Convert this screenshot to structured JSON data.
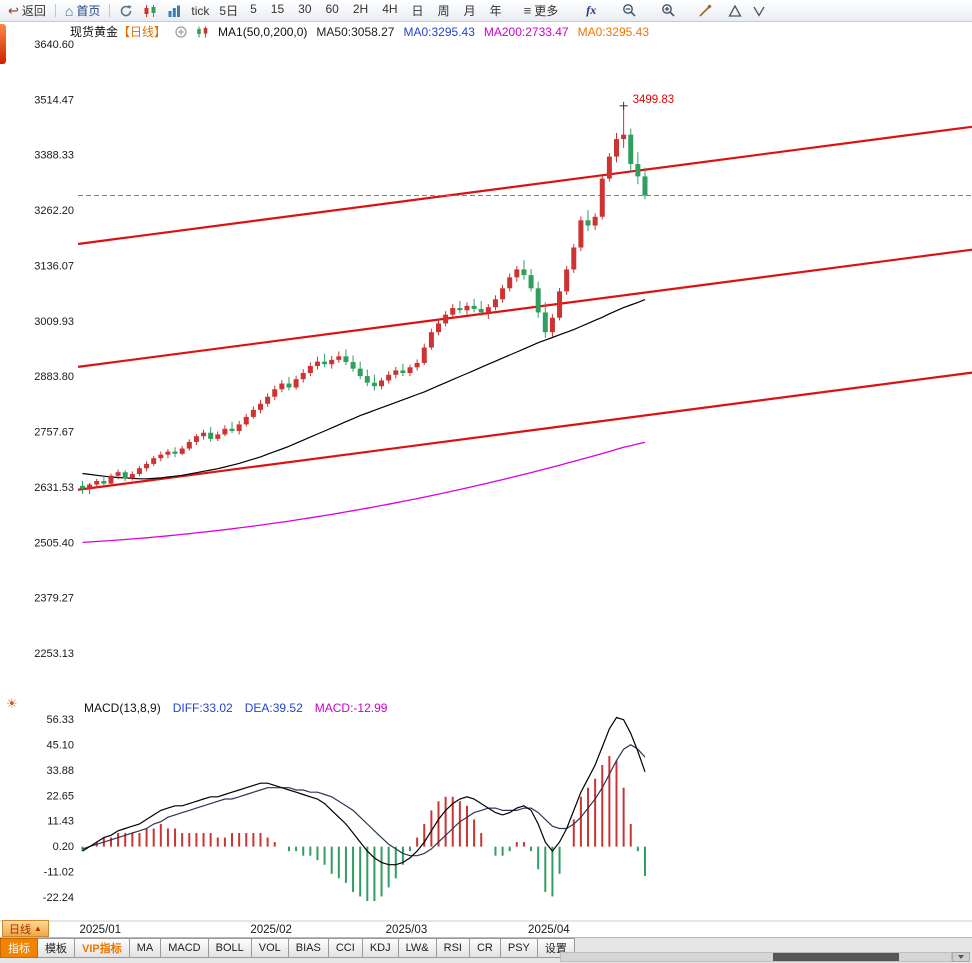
{
  "toolbar": {
    "back_label": "返回",
    "home_label": "首页",
    "tick_label": "tick",
    "five_day_label": "5日",
    "timeframes": [
      "5",
      "15",
      "30",
      "60",
      "2H",
      "4H",
      "日",
      "周",
      "月",
      "年"
    ],
    "more_label": "更多",
    "fx_label": "fx"
  },
  "chart_header": {
    "title_name": "现货黄金",
    "title_period": "【日线】",
    "ma_settings": "MA1(50,0,200,0)",
    "ma50": "MA50:3058.27",
    "ma0_blue": "MA0:3295.43",
    "ma200": "MA200:2733.47",
    "ma0_orange": "MA0:3295.43"
  },
  "macd_header": {
    "label": "MACD(13,8,9)",
    "diff": "DIFF:33.02",
    "dea": "DEA:39.52",
    "macd": "MACD:-12.99"
  },
  "bottom": {
    "period_chip": {
      "label": "日线",
      "arrow": "▲"
    },
    "tabs": [
      {
        "label": "指标",
        "style": "active"
      },
      {
        "label": "模板"
      },
      {
        "label": "VIP指标",
        "style": "vip"
      },
      {
        "label": "MA"
      },
      {
        "label": "MACD"
      },
      {
        "label": "BOLL"
      },
      {
        "label": "VOL"
      },
      {
        "label": "BIAS"
      },
      {
        "label": "CCI"
      },
      {
        "label": "KDJ"
      },
      {
        "label": "LW&"
      },
      {
        "label": "RSI"
      },
      {
        "label": "CR"
      },
      {
        "label": "PSY"
      },
      {
        "label": "设置"
      }
    ]
  },
  "chart_data": {
    "type": "candlestick-with-macd",
    "instrument": "现货黄金",
    "period": "日线",
    "price_axis_ticks": [
      "3640.60",
      "3514.47",
      "3388.33",
      "3262.20",
      "3136.07",
      "3009.93",
      "2883.80",
      "2757.67",
      "2631.53",
      "2505.40",
      "2379.27",
      "2253.13"
    ],
    "macd_axis_ticks": [
      "56.33",
      "45.10",
      "33.88",
      "22.65",
      "11.43",
      "0.20",
      "-11.02",
      "-22.24"
    ],
    "x_labels": [
      {
        "label": "2025/01",
        "candle_index": 0
      },
      {
        "label": "2025/02",
        "candle_index": 24
      },
      {
        "label": "2025/03",
        "candle_index": 43
      },
      {
        "label": "2025/04",
        "candle_index": 63
      }
    ],
    "annotation": {
      "text": "3499.83",
      "price": 3499.83,
      "candle_index": 76
    },
    "current_price_line": {
      "value": 3295.43
    },
    "trend_channel": {
      "lines": [
        {
          "price_start": 3185,
          "price_end": 3452
        },
        {
          "price_start": 2905,
          "price_end": 3172
        },
        {
          "price_start": 2625,
          "price_end": 2892
        }
      ]
    },
    "candles": [
      [
        2634,
        2645,
        2616,
        2628
      ],
      [
        2628,
        2641,
        2615,
        2637
      ],
      [
        2637,
        2650,
        2629,
        2645
      ],
      [
        2645,
        2656,
        2634,
        2639
      ],
      [
        2639,
        2662,
        2636,
        2657
      ],
      [
        2657,
        2671,
        2649,
        2665
      ],
      [
        2665,
        2670,
        2645,
        2651
      ],
      [
        2651,
        2667,
        2646,
        2661
      ],
      [
        2661,
        2679,
        2656,
        2674
      ],
      [
        2674,
        2690,
        2667,
        2684
      ],
      [
        2684,
        2702,
        2679,
        2697
      ],
      [
        2697,
        2712,
        2690,
        2705
      ],
      [
        2705,
        2718,
        2697,
        2712
      ],
      [
        2712,
        2722,
        2699,
        2707
      ],
      [
        2707,
        2725,
        2704,
        2719
      ],
      [
        2719,
        2740,
        2714,
        2734
      ],
      [
        2734,
        2752,
        2727,
        2747
      ],
      [
        2747,
        2762,
        2739,
        2755
      ],
      [
        2755,
        2768,
        2734,
        2741
      ],
      [
        2741,
        2758,
        2736,
        2751
      ],
      [
        2751,
        2772,
        2747,
        2764
      ],
      [
        2764,
        2780,
        2754,
        2759
      ],
      [
        2759,
        2782,
        2751,
        2774
      ],
      [
        2774,
        2798,
        2769,
        2791
      ],
      [
        2791,
        2815,
        2787,
        2807
      ],
      [
        2807,
        2830,
        2799,
        2821
      ],
      [
        2821,
        2845,
        2814,
        2837
      ],
      [
        2837,
        2862,
        2829,
        2854
      ],
      [
        2854,
        2875,
        2847,
        2867
      ],
      [
        2867,
        2882,
        2851,
        2858
      ],
      [
        2858,
        2885,
        2853,
        2877
      ],
      [
        2877,
        2900,
        2869,
        2891
      ],
      [
        2891,
        2915,
        2884,
        2907
      ],
      [
        2907,
        2928,
        2899,
        2917
      ],
      [
        2917,
        2935,
        2904,
        2911
      ],
      [
        2911,
        2930,
        2901,
        2921
      ],
      [
        2921,
        2940,
        2914,
        2929
      ],
      [
        2929,
        2945,
        2909,
        2916
      ],
      [
        2916,
        2931,
        2894,
        2901
      ],
      [
        2901,
        2917,
        2877,
        2884
      ],
      [
        2884,
        2899,
        2861,
        2869
      ],
      [
        2869,
        2887,
        2851,
        2861
      ],
      [
        2861,
        2880,
        2854,
        2874
      ],
      [
        2874,
        2895,
        2867,
        2887
      ],
      [
        2887,
        2905,
        2879,
        2897
      ],
      [
        2897,
        2912,
        2884,
        2891
      ],
      [
        2891,
        2910,
        2884,
        2904
      ],
      [
        2904,
        2922,
        2897,
        2914
      ],
      [
        2914,
        2958,
        2909,
        2949
      ],
      [
        2949,
        2992,
        2944,
        2984
      ],
      [
        2984,
        3012,
        2977,
        3004
      ],
      [
        3004,
        3032,
        2997,
        3024
      ],
      [
        3024,
        3048,
        3017,
        3039
      ],
      [
        3039,
        3055,
        3027,
        3034
      ],
      [
        3034,
        3052,
        3024,
        3044
      ],
      [
        3044,
        3060,
        3029,
        3037
      ],
      [
        3037,
        3055,
        3021,
        3029
      ],
      [
        3029,
        3048,
        3014,
        3041
      ],
      [
        3041,
        3068,
        3034,
        3059
      ],
      [
        3059,
        3092,
        3051,
        3084
      ],
      [
        3084,
        3118,
        3077,
        3109
      ],
      [
        3109,
        3135,
        3099,
        3127
      ],
      [
        3127,
        3148,
        3104,
        3114
      ],
      [
        3114,
        3128,
        3077,
        3084
      ],
      [
        3084,
        3099,
        3017,
        3029
      ],
      [
        3029,
        3052,
        2971,
        2984
      ],
      [
        2984,
        3025,
        2974,
        3017
      ],
      [
        3017,
        3085,
        3011,
        3077
      ],
      [
        3077,
        3135,
        3069,
        3127
      ],
      [
        3127,
        3185,
        3119,
        3177
      ],
      [
        3177,
        3248,
        3169,
        3239
      ],
      [
        3239,
        3262,
        3214,
        3227
      ],
      [
        3227,
        3255,
        3217,
        3247
      ],
      [
        3247,
        3342,
        3241,
        3334
      ],
      [
        3334,
        3392,
        3327,
        3384
      ],
      [
        3384,
        3438,
        3371,
        3424
      ],
      [
        3424,
        3499.83,
        3404,
        3434
      ],
      [
        3434,
        3448,
        3351,
        3367
      ],
      [
        3367,
        3394,
        3321,
        3339
      ],
      [
        3339,
        3359,
        3287,
        3295.43
      ]
    ],
    "ma50": [
      2662,
      2660,
      2658,
      2656,
      2654,
      2653,
      2652,
      2651,
      2650,
      2650,
      2651,
      2652,
      2654,
      2656,
      2658,
      2661,
      2664,
      2667,
      2670,
      2673,
      2677,
      2681,
      2685,
      2690,
      2695,
      2700,
      2706,
      2712,
      2718,
      2724,
      2731,
      2738,
      2745,
      2752,
      2759,
      2766,
      2773,
      2780,
      2787,
      2794,
      2800,
      2806,
      2812,
      2818,
      2824,
      2830,
      2836,
      2842,
      2848,
      2855,
      2862,
      2869,
      2876,
      2883,
      2890,
      2897,
      2904,
      2911,
      2918,
      2925,
      2932,
      2939,
      2946,
      2953,
      2960,
      2966,
      2972,
      2978,
      2984,
      2990,
      2997,
      3004,
      3011,
      3018,
      3026,
      3033,
      3040,
      3046,
      3052,
      3058.27
    ],
    "ma200": [
      2505,
      2506,
      2507.1,
      2508.2,
      2509.3,
      2510.5,
      2511.7,
      2513,
      2514.3,
      2515.7,
      2517.1,
      2518.6,
      2520.1,
      2521.7,
      2523.3,
      2525,
      2526.7,
      2528.5,
      2530.3,
      2532.2,
      2534.1,
      2536.1,
      2538.1,
      2540.2,
      2542.3,
      2544.5,
      2546.7,
      2549,
      2551.3,
      2553.7,
      2556.1,
      2558.6,
      2561.1,
      2563.7,
      2566.3,
      2569,
      2571.7,
      2574.5,
      2577.3,
      2580.2,
      2583.1,
      2586.1,
      2589.1,
      2592.2,
      2595.3,
      2598.5,
      2601.7,
      2605,
      2608.3,
      2611.7,
      2615.1,
      2618.6,
      2622.1,
      2625.7,
      2629.3,
      2633,
      2636.7,
      2640.5,
      2644.3,
      2648.2,
      2652.1,
      2656.1,
      2660.1,
      2664.2,
      2668.3,
      2672.5,
      2676.7,
      2681,
      2685.3,
      2689.7,
      2694.1,
      2698.6,
      2703.1,
      2707.7,
      2712.3,
      2717,
      2721.7,
      2725.5,
      2729.5,
      2733.47
    ],
    "macd": {
      "diff": [
        -2,
        0,
        2,
        4,
        5,
        7,
        8,
        9,
        10,
        12,
        14,
        16,
        17,
        18,
        18,
        19,
        20,
        21,
        22,
        22,
        23,
        24,
        25,
        26,
        27,
        28,
        28,
        27,
        26,
        25,
        24,
        23,
        22,
        21,
        19,
        16,
        13,
        10,
        6,
        2,
        -2,
        -5,
        -7,
        -8,
        -8,
        -7,
        -5,
        -2,
        2,
        7,
        12,
        16,
        19,
        21,
        22,
        21,
        19,
        17,
        15,
        14,
        15,
        17,
        18,
        16,
        10,
        2,
        -2,
        2,
        8,
        16,
        24,
        30,
        36,
        44,
        52,
        57,
        56,
        50,
        42,
        33.02
      ],
      "dea": [
        -1,
        0,
        1,
        2,
        3,
        4,
        5,
        6,
        7,
        8,
        10,
        11,
        13,
        14,
        15,
        16,
        17,
        18,
        19,
        20,
        21,
        21,
        22,
        23,
        24,
        25,
        26,
        26,
        26,
        26,
        25,
        25,
        24,
        24,
        23,
        22,
        20,
        18,
        16,
        13,
        10,
        7,
        4,
        1,
        -1,
        -3,
        -4,
        -4,
        -3,
        -1,
        2,
        5,
        8,
        11,
        13,
        15,
        16,
        17,
        17,
        16,
        16,
        16,
        17,
        17,
        15,
        12,
        9,
        8,
        8,
        10,
        13,
        17,
        21,
        26,
        32,
        38,
        43,
        45,
        43,
        39.52
      ],
      "hist": [
        -2,
        0,
        2,
        4,
        4,
        6,
        6,
        6,
        6,
        8,
        8,
        10,
        8,
        8,
        6,
        6,
        6,
        6,
        6,
        4,
        4,
        6,
        6,
        6,
        6,
        6,
        4,
        2,
        0,
        -2,
        -2,
        -4,
        -4,
        -6,
        -8,
        -12,
        -14,
        -16,
        -20,
        -22,
        -24,
        -24,
        -22,
        -18,
        -14,
        -8,
        -2,
        4,
        10,
        16,
        20,
        22,
        22,
        20,
        18,
        12,
        6,
        0,
        -4,
        -4,
        -2,
        2,
        2,
        -2,
        -10,
        -20,
        -22,
        -12,
        0,
        12,
        22,
        26,
        30,
        36,
        40,
        38,
        26,
        10,
        -2,
        -12.99
      ]
    },
    "colors": {
      "up": "#cc3333",
      "down": "#2f9e5f",
      "trend": "#dd1111",
      "ma50": "#000000",
      "ma200": "#dd00dd",
      "price_line": "#2fa0a0",
      "hist_pos": "#cc3333",
      "hist_neg": "#2f9e5f",
      "diff_line": "#000000",
      "dea_line": "#333355",
      "annotation": "#ee0000"
    }
  }
}
